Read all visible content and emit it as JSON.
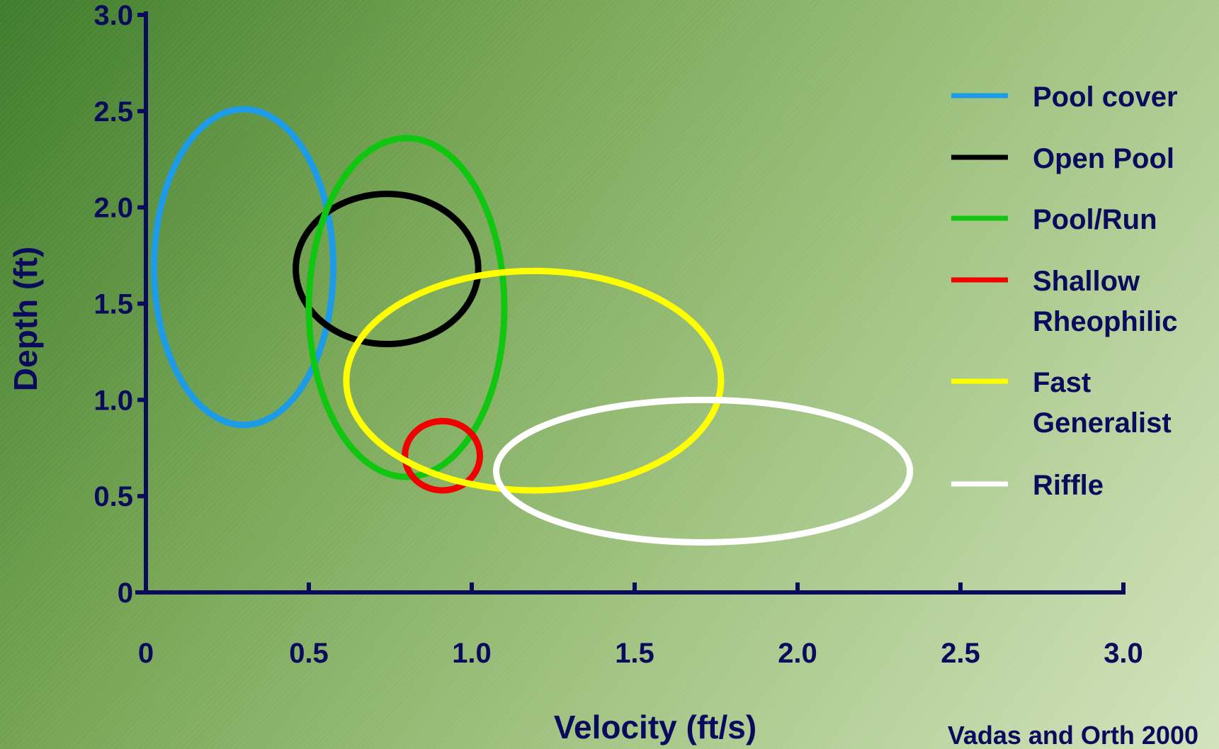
{
  "chart_data": {
    "type": "scatter",
    "subtype": "ellipse-regions",
    "xlabel": "Velocity (ft/s)",
    "ylabel": "Depth (ft)",
    "xlim": [
      0,
      3.0
    ],
    "ylim": [
      0,
      3.0
    ],
    "x_ticks": [
      "0",
      "0.5",
      "1.0",
      "1.5",
      "2.0",
      "2.5",
      "3.0"
    ],
    "y_ticks": [
      "0",
      "0.5",
      "1.0",
      "1.5",
      "2.0",
      "2.5",
      "3.0"
    ],
    "grid": false,
    "legend_position": "right",
    "source": "Vadas and Orth 2000",
    "series": [
      {
        "name": "Pool cover",
        "legend_lines": [
          "Pool cover"
        ],
        "color": "#1e9be6",
        "cx": 0.3,
        "cy": 1.69,
        "rx": 0.275,
        "ry": 0.82
      },
      {
        "name": "Open Pool",
        "legend_lines": [
          "Open Pool"
        ],
        "color": "#000000",
        "cx": 0.74,
        "cy": 1.68,
        "rx": 0.28,
        "ry": 0.39
      },
      {
        "name": "Pool/Run",
        "legend_lines": [
          "Pool/Run"
        ],
        "color": "#11c611",
        "cx": 0.8,
        "cy": 1.48,
        "rx": 0.3,
        "ry": 0.88
      },
      {
        "name": "Shallow Rheophilic",
        "legend_lines": [
          "Shallow",
          "Rheophilic"
        ],
        "color": "#f00000",
        "cx": 0.91,
        "cy": 0.71,
        "rx": 0.115,
        "ry": 0.18
      },
      {
        "name": "Fast Generalist",
        "legend_lines": [
          "Fast",
          "Generalist"
        ],
        "color": "#ffff00",
        "cx": 1.19,
        "cy": 1.1,
        "rx": 0.575,
        "ry": 0.57
      },
      {
        "name": "Riffle",
        "legend_lines": [
          "Riffle"
        ],
        "color": "#ffffff",
        "cx": 1.71,
        "cy": 0.63,
        "rx": 0.635,
        "ry": 0.37
      }
    ]
  }
}
